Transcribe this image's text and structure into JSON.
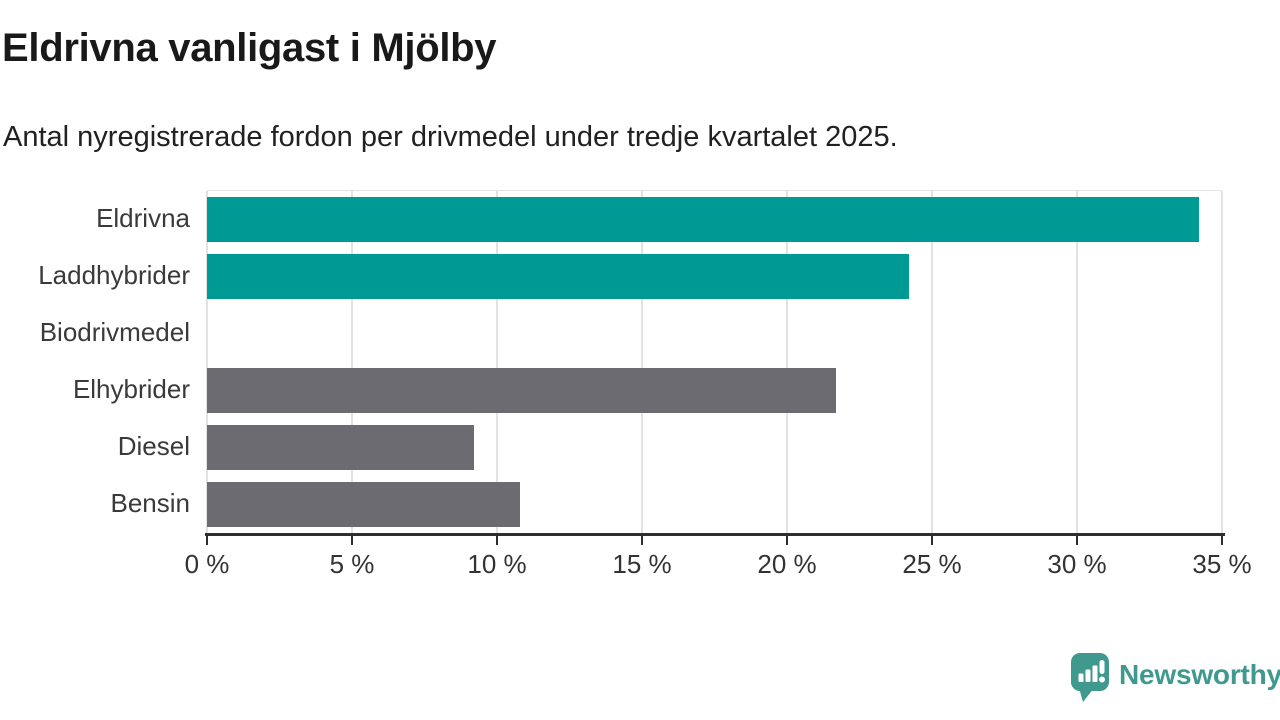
{
  "chart_data": {
    "type": "bar",
    "orientation": "horizontal",
    "title": "Eldrivna vanligast i Mjölby",
    "subtitle": "Antal nyregistrerade fordon per drivmedel under tredje kvartalet 2025.",
    "categories": [
      "Eldrivna",
      "Laddhybrider",
      "Biodrivmedel",
      "Elhybrider",
      "Diesel",
      "Bensin"
    ],
    "values": [
      34.2,
      24.2,
      0,
      21.7,
      9.2,
      10.8
    ],
    "unit": "%",
    "bar_colors": [
      "#009a94",
      "#009a94",
      "#6b6b71",
      "#6b6b71",
      "#6b6b71",
      "#6b6b71"
    ],
    "highlight_color": "#009a94",
    "default_color": "#6b6b71",
    "xlim": [
      0,
      35
    ],
    "x_ticks": [
      0,
      5,
      10,
      15,
      20,
      25,
      30,
      35
    ],
    "x_tick_labels": [
      "0 %",
      "5 %",
      "10 %",
      "15 %",
      "20 %",
      "25 %",
      "30 %",
      "35 %"
    ],
    "xlabel": "",
    "ylabel": "",
    "grid": "vertical-only",
    "legend": "none"
  },
  "branding": {
    "logo_text": "Newsworthy",
    "logo_color": "#3f998e"
  }
}
